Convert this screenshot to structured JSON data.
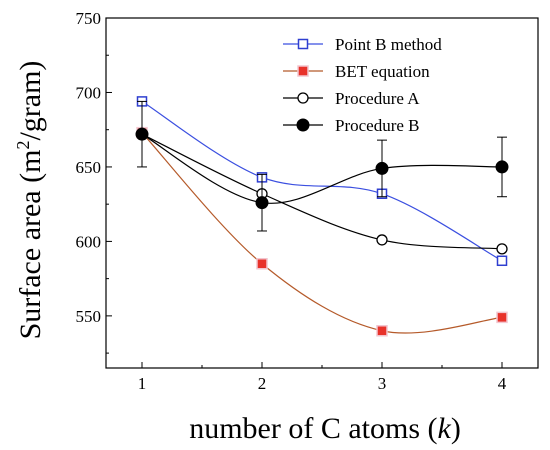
{
  "chart_data": {
    "type": "line",
    "x": [
      1,
      2,
      3,
      4
    ],
    "xticks": [
      1,
      2,
      3,
      4
    ],
    "yticks": [
      550,
      600,
      650,
      700,
      750
    ],
    "xlim": [
      0.7,
      4.3
    ],
    "ylim": [
      515,
      750
    ],
    "xlabel_prefix": "number of C atoms (",
    "xlabel_var": "k",
    "xlabel_suffix": ")",
    "ylabel_prefix": "Surface area (m",
    "ylabel_sup": "2",
    "ylabel_suffix": "/gram)",
    "legend_position": "top-right",
    "grid": false,
    "series": [
      {
        "name": "Point B method",
        "values": [
          694,
          643,
          632,
          587
        ],
        "color": "#2f3fd0",
        "line_color": "#3b4fe0",
        "marker": "open-square"
      },
      {
        "name": "BET equation",
        "values": [
          673,
          585,
          540,
          549
        ],
        "color": "#e8322a",
        "line_color": "#b55a2a",
        "marker": "filled-square"
      },
      {
        "name": "Procedure A",
        "values": [
          672,
          632,
          601,
          595
        ],
        "color": "#000000",
        "line_color": "#000000",
        "marker": "open-circle"
      },
      {
        "name": "Procedure B",
        "values": [
          672,
          626,
          649,
          650
        ],
        "color": "#000000",
        "line_color": "#000000",
        "marker": "filled-circle",
        "error_bars": [
          22,
          19,
          19,
          20
        ]
      }
    ]
  }
}
